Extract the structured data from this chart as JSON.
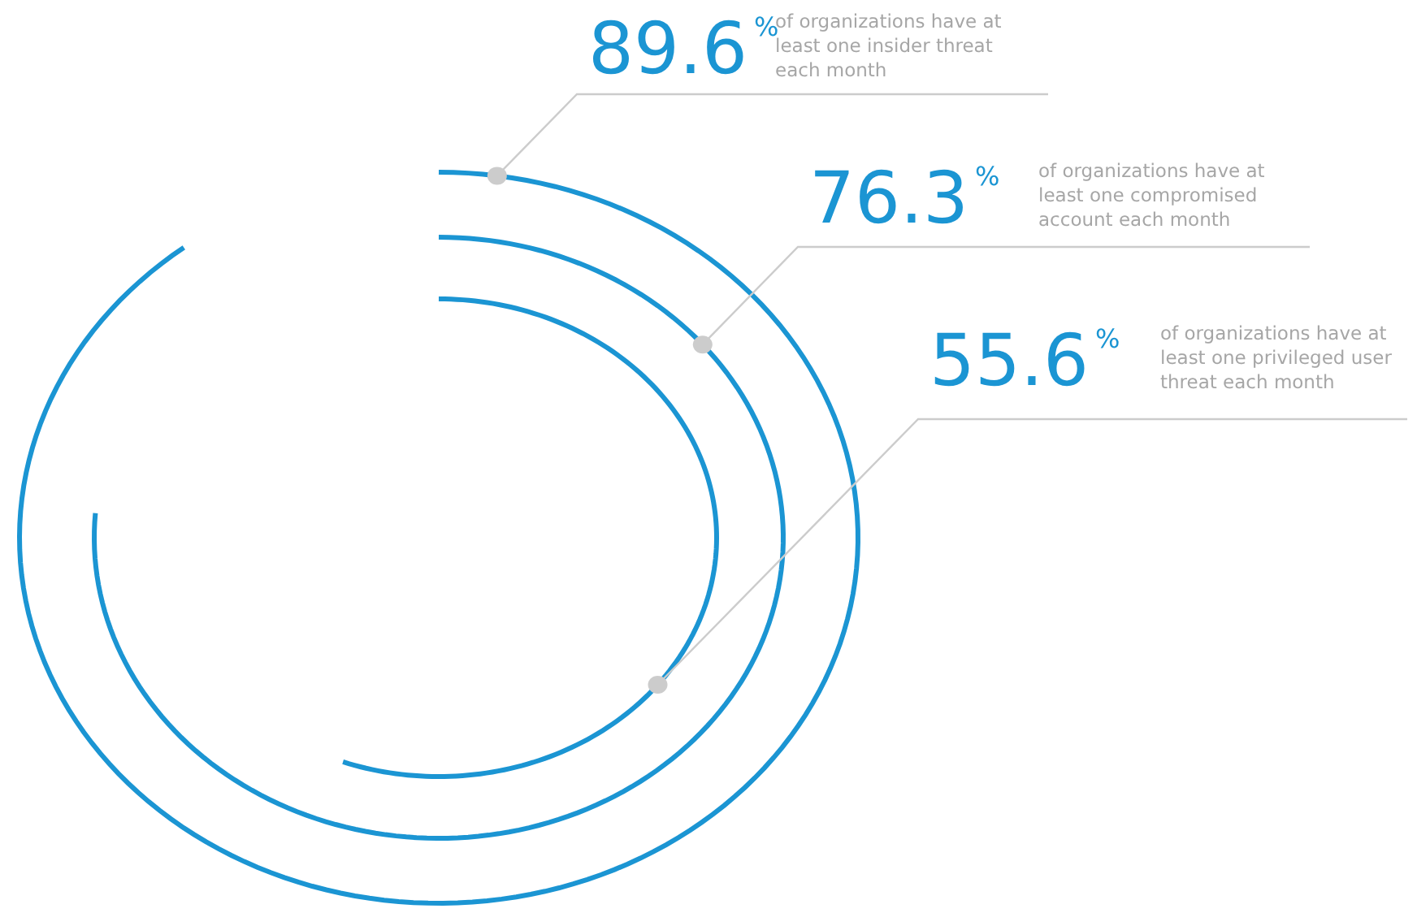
{
  "chart_data": {
    "type": "other",
    "categories": [
      "of organizations have at least one insider threat each month",
      "of organizations have at least one compromised account each month",
      "of organizations have at least one privileged user threat each month"
    ],
    "values": [
      89.6,
      76.3,
      55.6
    ],
    "value_labels": [
      "89.6%",
      "76.3%",
      "55.6%"
    ],
    "color": "#1b95d3"
  }
}
